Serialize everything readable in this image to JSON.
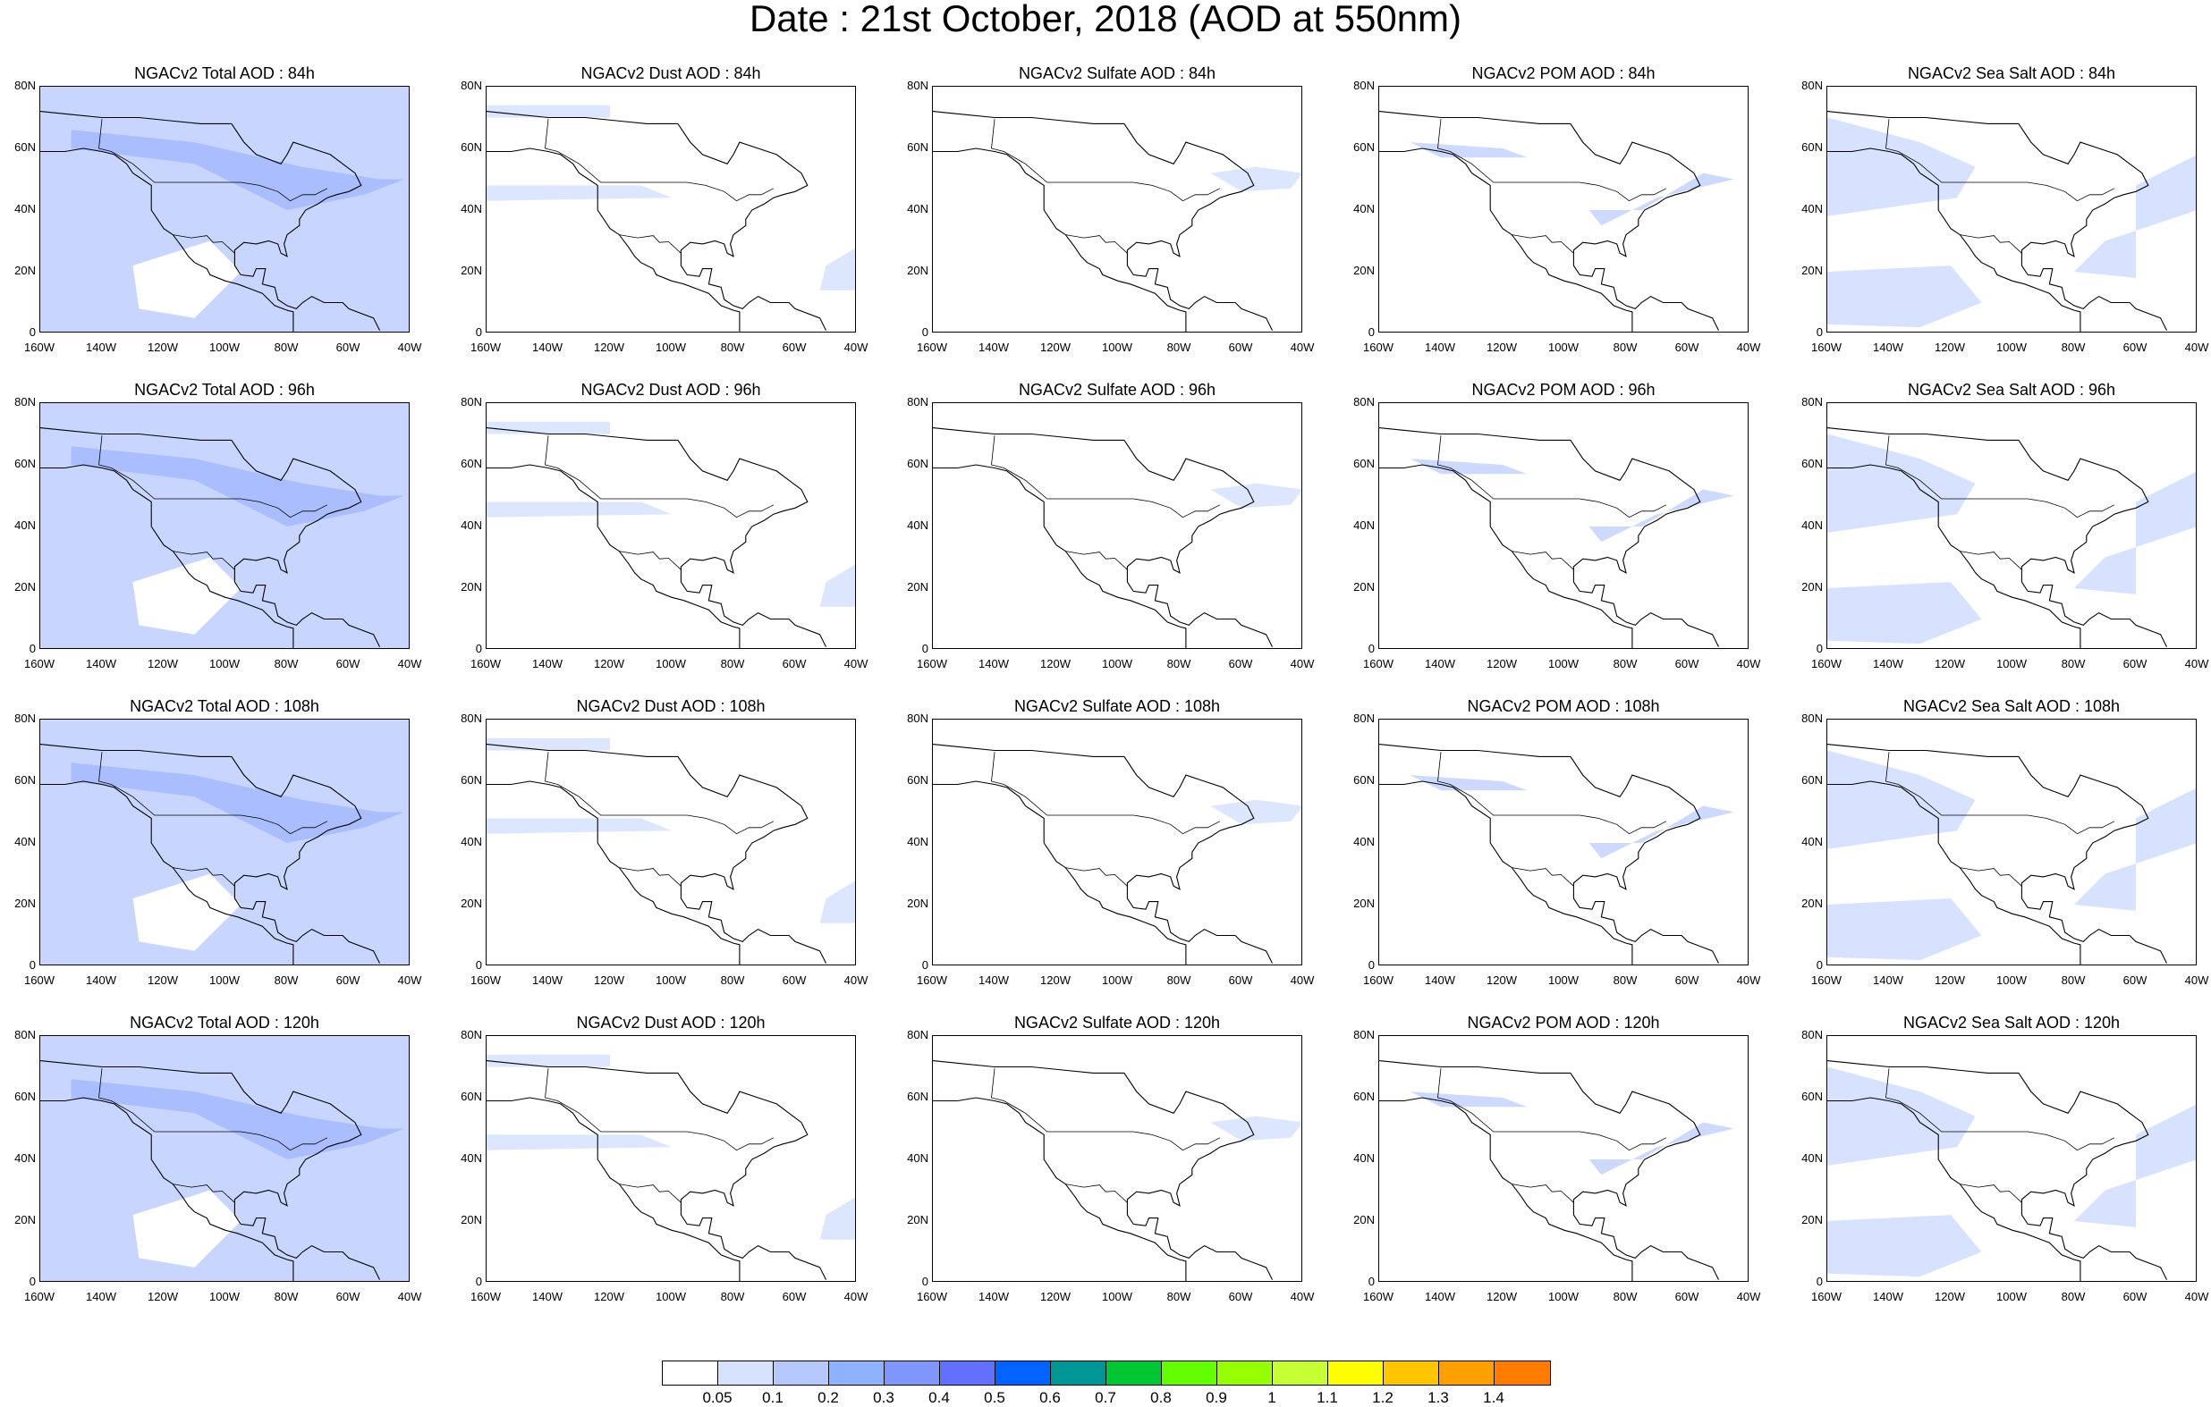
{
  "title": "Date : 21st October, 2018 (AOD at 550nm)",
  "rows": [
    {
      "titles": [
        "NGACv2 Total AOD : 84h",
        "NGACv2 Dust AOD : 84h",
        "NGACv2 Sulfate AOD : 84h",
        "NGACv2 POM AOD : 84h",
        "NGACv2 Sea Salt AOD : 84h"
      ]
    },
    {
      "titles": [
        "NGACv2 Total AOD : 96h",
        "NGACv2 Dust AOD : 96h",
        "NGACv2 Sulfate AOD : 96h",
        "NGACv2 POM AOD : 96h",
        "NGACv2 Sea Salt AOD : 96h"
      ]
    },
    {
      "titles": [
        "NGACv2 Total AOD : 108h",
        "NGACv2 Dust AOD : 108h",
        "NGACv2 Sulfate AOD : 108h",
        "NGACv2 POM AOD : 108h",
        "NGACv2 Sea Salt AOD : 108h"
      ]
    },
    {
      "titles": [
        "NGACv2 Total AOD : 120h",
        "NGACv2 Dust AOD : 120h",
        "NGACv2 Sulfate AOD : 120h",
        "NGACv2 POM AOD : 120h",
        "NGACv2 Sea Salt  AOD : 120h"
      ]
    }
  ],
  "lat_ticks": [
    "80N",
    "60N",
    "40N",
    "20N",
    "0"
  ],
  "lon_ticks": [
    "160W",
    "140W",
    "120W",
    "100W",
    "80W",
    "60W",
    "40W"
  ],
  "colorbar": {
    "colors": [
      "#ffffff",
      "#d6e2ff",
      "#b5c9ff",
      "#8eb2ff",
      "#7f96ff",
      "#6370ff",
      "#0063ff",
      "#009696",
      "#00c633",
      "#63ff00",
      "#96ff00",
      "#c6ff33",
      "#ffff00",
      "#ffc600",
      "#ffa000",
      "#ff7c00",
      "#ff1900"
    ],
    "labels": [
      "0.05",
      "0.1",
      "0.2",
      "0.3",
      "0.4",
      "0.5",
      "0.6",
      "0.7",
      "0.8",
      "0.9",
      "1",
      "1.1",
      "1.2",
      "1.3",
      "1.4"
    ]
  },
  "panel_fill": {
    "Total": "#c8d6ff",
    "Dust": "#dce6ff",
    "Sulfate": "#dce6ff",
    "POM": "#cdd9ff",
    "SeaSalt": "#d6e2ff"
  }
}
